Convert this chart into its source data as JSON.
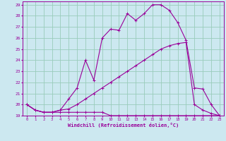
{
  "xlabel": "Windchill (Refroidissement éolien,°C)",
  "background_color": "#cce8f0",
  "line_color": "#990099",
  "grid_color": "#99ccbb",
  "xlim": [
    -0.5,
    23.5
  ],
  "ylim": [
    19,
    29.3
  ],
  "xticks": [
    0,
    1,
    2,
    3,
    4,
    5,
    6,
    7,
    8,
    9,
    10,
    11,
    12,
    13,
    14,
    15,
    16,
    17,
    18,
    19,
    20,
    21,
    22,
    23
  ],
  "yticks": [
    19,
    20,
    21,
    22,
    23,
    24,
    25,
    26,
    27,
    28,
    29
  ],
  "line1_x": [
    0,
    1,
    2,
    3,
    4,
    5,
    6,
    7,
    8,
    9,
    10,
    11,
    12,
    13,
    14,
    15,
    16,
    17,
    18,
    19,
    20,
    21,
    22,
    23
  ],
  "line1_y": [
    20.0,
    19.5,
    19.3,
    19.3,
    19.3,
    19.3,
    19.3,
    19.3,
    19.3,
    19.3,
    19.0,
    19.0,
    19.0,
    19.0,
    19.0,
    19.0,
    19.0,
    19.0,
    19.0,
    19.0,
    19.0,
    19.0,
    19.0,
    19.0
  ],
  "line2_x": [
    0,
    1,
    2,
    3,
    4,
    5,
    6,
    7,
    8,
    9,
    10,
    11,
    12,
    13,
    14,
    15,
    16,
    17,
    18,
    19,
    20,
    21,
    22,
    23
  ],
  "line2_y": [
    20.0,
    19.5,
    19.3,
    19.3,
    19.5,
    19.6,
    20.0,
    20.5,
    21.0,
    21.5,
    22.0,
    22.5,
    23.0,
    23.5,
    24.0,
    24.5,
    25.0,
    25.3,
    25.5,
    25.6,
    20.0,
    19.5,
    19.2,
    19.0
  ],
  "line3_x": [
    0,
    1,
    2,
    3,
    4,
    5,
    6,
    7,
    8,
    9,
    10,
    11,
    12,
    13,
    14,
    15,
    16,
    17,
    18,
    19,
    20,
    21,
    22,
    23
  ],
  "line3_y": [
    20.0,
    19.5,
    19.3,
    19.3,
    19.5,
    20.5,
    21.5,
    24.0,
    22.2,
    26.0,
    26.8,
    26.7,
    28.2,
    27.6,
    28.2,
    29.0,
    29.0,
    28.5,
    27.4,
    25.8,
    21.5,
    21.4,
    20.0,
    19.0
  ]
}
